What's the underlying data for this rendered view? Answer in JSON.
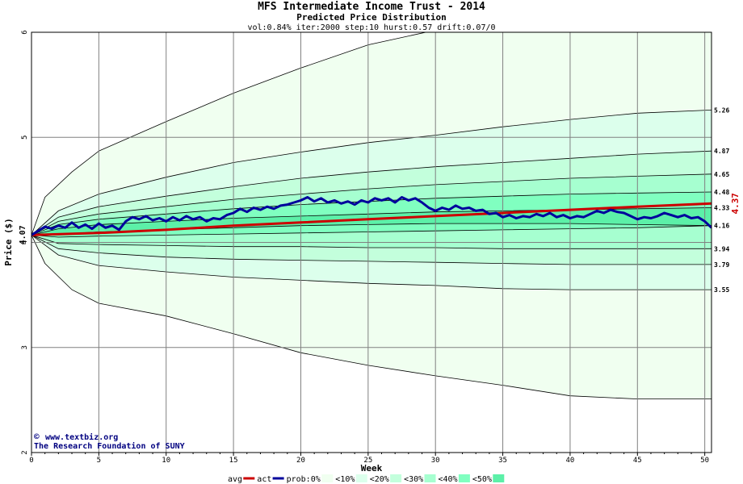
{
  "chart_data": {
    "type": "area",
    "title": "MFS Intermediate Income Trust - 2014",
    "subtitle": "Predicted Price Distribution",
    "params": "vol:0.84% iter:2000 step:10 hurst:0.57 drift:0.07/0",
    "xlabel": "Week",
    "ylabel": "Price ($)",
    "xlim": [
      0,
      50.5
    ],
    "ylim": [
      2,
      6
    ],
    "xticks": [
      0,
      5,
      10,
      15,
      20,
      25,
      30,
      35,
      40,
      45,
      50
    ],
    "yticks": [
      2,
      3,
      4,
      5,
      6
    ],
    "start_price": 4.07,
    "start_label": "4.07",
    "end_avg_label": "4.37",
    "end_avg_value": 4.37,
    "right_labels": [
      {
        "value": 5.26,
        "label": "5.26"
      },
      {
        "value": 4.87,
        "label": "4.87"
      },
      {
        "value": 4.65,
        "label": "4.65"
      },
      {
        "value": 4.48,
        "label": "4.48"
      },
      {
        "value": 4.33,
        "label": "4.33"
      },
      {
        "value": 4.16,
        "label": "4.16"
      },
      {
        "value": 3.94,
        "label": "3.94"
      },
      {
        "value": 3.79,
        "label": "3.79"
      },
      {
        "value": 3.55,
        "label": "3.55"
      }
    ],
    "bands": [
      {
        "name": "0%",
        "color": "#f0fff0",
        "upper": [
          [
            0,
            4.07
          ],
          [
            1,
            4.43
          ],
          [
            3,
            4.67
          ],
          [
            5,
            4.87
          ],
          [
            10,
            5.15
          ],
          [
            15,
            5.42
          ],
          [
            20,
            5.66
          ],
          [
            25,
            5.88
          ],
          [
            30,
            6.02
          ],
          [
            35,
            6.15
          ],
          [
            40,
            6.28
          ],
          [
            45,
            6.4
          ],
          [
            50.5,
            6.5
          ]
        ],
        "lower": [
          [
            0,
            4.07
          ],
          [
            1,
            3.8
          ],
          [
            3,
            3.55
          ],
          [
            5,
            3.42
          ],
          [
            10,
            3.3
          ],
          [
            15,
            3.13
          ],
          [
            20,
            2.95
          ],
          [
            25,
            2.83
          ],
          [
            30,
            2.73
          ],
          [
            35,
            2.64
          ],
          [
            40,
            2.54
          ],
          [
            45,
            2.51
          ],
          [
            50.5,
            2.51
          ]
        ]
      },
      {
        "name": "10%",
        "color": "#dcffec",
        "upper": [
          [
            0,
            4.07
          ],
          [
            2,
            4.3
          ],
          [
            5,
            4.46
          ],
          [
            10,
            4.62
          ],
          [
            15,
            4.76
          ],
          [
            20,
            4.86
          ],
          [
            25,
            4.95
          ],
          [
            30,
            5.02
          ],
          [
            35,
            5.1
          ],
          [
            40,
            5.17
          ],
          [
            45,
            5.23
          ],
          [
            50.5,
            5.26
          ]
        ],
        "lower": [
          [
            0,
            4.07
          ],
          [
            2,
            3.88
          ],
          [
            5,
            3.78
          ],
          [
            10,
            3.72
          ],
          [
            15,
            3.67
          ],
          [
            20,
            3.64
          ],
          [
            25,
            3.61
          ],
          [
            30,
            3.59
          ],
          [
            35,
            3.56
          ],
          [
            40,
            3.55
          ],
          [
            45,
            3.55
          ],
          [
            50.5,
            3.55
          ]
        ]
      },
      {
        "name": "20%",
        "color": "#c3ffdc",
        "upper": [
          [
            0,
            4.07
          ],
          [
            2,
            4.24
          ],
          [
            5,
            4.34
          ],
          [
            10,
            4.44
          ],
          [
            15,
            4.53
          ],
          [
            20,
            4.61
          ],
          [
            25,
            4.67
          ],
          [
            30,
            4.72
          ],
          [
            35,
            4.76
          ],
          [
            40,
            4.8
          ],
          [
            45,
            4.84
          ],
          [
            50.5,
            4.87
          ]
        ],
        "lower": [
          [
            0,
            4.07
          ],
          [
            2,
            3.94
          ],
          [
            5,
            3.9
          ],
          [
            10,
            3.86
          ],
          [
            15,
            3.84
          ],
          [
            20,
            3.83
          ],
          [
            25,
            3.82
          ],
          [
            30,
            3.81
          ],
          [
            35,
            3.8
          ],
          [
            40,
            3.79
          ],
          [
            45,
            3.79
          ],
          [
            50.5,
            3.79
          ]
        ]
      },
      {
        "name": "30%",
        "color": "#a6ffd0",
        "upper": [
          [
            0,
            4.07
          ],
          [
            2,
            4.2
          ],
          [
            5,
            4.27
          ],
          [
            10,
            4.34
          ],
          [
            15,
            4.41
          ],
          [
            20,
            4.46
          ],
          [
            25,
            4.51
          ],
          [
            30,
            4.55
          ],
          [
            35,
            4.58
          ],
          [
            40,
            4.61
          ],
          [
            45,
            4.63
          ],
          [
            50.5,
            4.65
          ]
        ],
        "lower": [
          [
            0,
            4.07
          ],
          [
            2,
            3.99
          ],
          [
            5,
            3.98
          ],
          [
            10,
            3.97
          ],
          [
            15,
            3.96
          ],
          [
            20,
            3.96
          ],
          [
            25,
            3.95
          ],
          [
            30,
            3.95
          ],
          [
            35,
            3.94
          ],
          [
            40,
            3.94
          ],
          [
            45,
            3.94
          ],
          [
            50.5,
            3.94
          ]
        ]
      },
      {
        "name": "40%",
        "color": "#80ffc0",
        "upper": [
          [
            0,
            4.07
          ],
          [
            2,
            4.17
          ],
          [
            5,
            4.22
          ],
          [
            10,
            4.27
          ],
          [
            15,
            4.32
          ],
          [
            20,
            4.36
          ],
          [
            25,
            4.39
          ],
          [
            30,
            4.42
          ],
          [
            35,
            4.44
          ],
          [
            40,
            4.46
          ],
          [
            45,
            4.47
          ],
          [
            50.5,
            4.48
          ]
        ],
        "lower": [
          [
            0,
            4.07
          ],
          [
            2,
            4.05
          ],
          [
            5,
            4.06
          ],
          [
            10,
            4.07
          ],
          [
            15,
            4.08
          ],
          [
            20,
            4.09
          ],
          [
            25,
            4.1
          ],
          [
            30,
            4.11
          ],
          [
            35,
            4.12
          ],
          [
            40,
            4.13
          ],
          [
            45,
            4.14
          ],
          [
            50.5,
            4.16
          ]
        ]
      },
      {
        "name": "50%",
        "color": "#5cf0a8",
        "upper": [
          [
            0,
            4.07
          ],
          [
            2,
            4.13
          ],
          [
            5,
            4.17
          ],
          [
            10,
            4.2
          ],
          [
            15,
            4.23
          ],
          [
            20,
            4.25
          ],
          [
            25,
            4.27
          ],
          [
            30,
            4.29
          ],
          [
            35,
            4.3
          ],
          [
            40,
            4.31
          ],
          [
            45,
            4.32
          ],
          [
            50.5,
            4.33
          ]
        ],
        "lower": [
          [
            0,
            4.07
          ],
          [
            2,
            4.08
          ],
          [
            5,
            4.1
          ],
          [
            10,
            4.12
          ],
          [
            15,
            4.14
          ],
          [
            20,
            4.16
          ],
          [
            25,
            4.17
          ],
          [
            30,
            4.18
          ],
          [
            35,
            4.18
          ],
          [
            40,
            4.18
          ],
          [
            45,
            4.17
          ],
          [
            50.5,
            4.16
          ]
        ]
      }
    ],
    "series": [
      {
        "name": "avg",
        "color": "#cc0000",
        "points": [
          [
            0,
            4.07
          ],
          [
            5,
            4.09
          ],
          [
            10,
            4.12
          ],
          [
            15,
            4.16
          ],
          [
            20,
            4.19
          ],
          [
            25,
            4.22
          ],
          [
            30,
            4.25
          ],
          [
            35,
            4.28
          ],
          [
            40,
            4.31
          ],
          [
            45,
            4.34
          ],
          [
            50.5,
            4.37
          ]
        ]
      },
      {
        "name": "act",
        "color": "#00009c",
        "points": [
          [
            0,
            4.07
          ],
          [
            0.5,
            4.11
          ],
          [
            1,
            4.15
          ],
          [
            1.5,
            4.13
          ],
          [
            2,
            4.16
          ],
          [
            2.5,
            4.14
          ],
          [
            3,
            4.19
          ],
          [
            3.5,
            4.14
          ],
          [
            4,
            4.17
          ],
          [
            4.5,
            4.13
          ],
          [
            5,
            4.18
          ],
          [
            5.5,
            4.14
          ],
          [
            6,
            4.16
          ],
          [
            6.5,
            4.12
          ],
          [
            7,
            4.2
          ],
          [
            7.5,
            4.24
          ],
          [
            8,
            4.22
          ],
          [
            8.5,
            4.25
          ],
          [
            9,
            4.21
          ],
          [
            9.5,
            4.23
          ],
          [
            10,
            4.2
          ],
          [
            10.5,
            4.24
          ],
          [
            11,
            4.21
          ],
          [
            11.5,
            4.25
          ],
          [
            12,
            4.22
          ],
          [
            12.5,
            4.24
          ],
          [
            13,
            4.2
          ],
          [
            13.5,
            4.23
          ],
          [
            14,
            4.22
          ],
          [
            14.5,
            4.26
          ],
          [
            15,
            4.28
          ],
          [
            15.5,
            4.32
          ],
          [
            16,
            4.29
          ],
          [
            16.5,
            4.33
          ],
          [
            17,
            4.31
          ],
          [
            17.5,
            4.34
          ],
          [
            18,
            4.32
          ],
          [
            18.5,
            4.35
          ],
          [
            19,
            4.36
          ],
          [
            19.5,
            4.38
          ],
          [
            20,
            4.4
          ],
          [
            20.5,
            4.43
          ],
          [
            21,
            4.39
          ],
          [
            21.5,
            4.42
          ],
          [
            22,
            4.38
          ],
          [
            22.5,
            4.4
          ],
          [
            23,
            4.37
          ],
          [
            23.5,
            4.39
          ],
          [
            24,
            4.36
          ],
          [
            24.5,
            4.4
          ],
          [
            25,
            4.38
          ],
          [
            25.5,
            4.42
          ],
          [
            26,
            4.4
          ],
          [
            26.5,
            4.42
          ],
          [
            27,
            4.38
          ],
          [
            27.5,
            4.43
          ],
          [
            28,
            4.4
          ],
          [
            28.5,
            4.42
          ],
          [
            29,
            4.38
          ],
          [
            29.5,
            4.33
          ],
          [
            30,
            4.3
          ],
          [
            30.5,
            4.33
          ],
          [
            31,
            4.31
          ],
          [
            31.5,
            4.35
          ],
          [
            32,
            4.32
          ],
          [
            32.5,
            4.33
          ],
          [
            33,
            4.3
          ],
          [
            33.5,
            4.31
          ],
          [
            34,
            4.27
          ],
          [
            34.5,
            4.28
          ],
          [
            35,
            4.24
          ],
          [
            35.5,
            4.26
          ],
          [
            36,
            4.23
          ],
          [
            36.5,
            4.25
          ],
          [
            37,
            4.24
          ],
          [
            37.5,
            4.27
          ],
          [
            38,
            4.25
          ],
          [
            38.5,
            4.28
          ],
          [
            39,
            4.24
          ],
          [
            39.5,
            4.26
          ],
          [
            40,
            4.23
          ],
          [
            40.5,
            4.25
          ],
          [
            41,
            4.24
          ],
          [
            41.5,
            4.27
          ],
          [
            42,
            4.3
          ],
          [
            42.5,
            4.28
          ],
          [
            43,
            4.31
          ],
          [
            43.5,
            4.29
          ],
          [
            44,
            4.28
          ],
          [
            44.5,
            4.25
          ],
          [
            45,
            4.22
          ],
          [
            45.5,
            4.24
          ],
          [
            46,
            4.23
          ],
          [
            46.5,
            4.25
          ],
          [
            47,
            4.28
          ],
          [
            47.5,
            4.26
          ],
          [
            48,
            4.24
          ],
          [
            48.5,
            4.26
          ],
          [
            49,
            4.23
          ],
          [
            49.5,
            4.24
          ],
          [
            50,
            4.2
          ],
          [
            50.5,
            4.14
          ]
        ]
      }
    ],
    "legend": {
      "placement": "bottom",
      "items": [
        {
          "label": "avg",
          "type": "line",
          "color": "#cc0000"
        },
        {
          "label": "act",
          "type": "line",
          "color": "#00009c"
        },
        {
          "label": "prob:0%",
          "type": "swatch",
          "color": "#f0fff0"
        },
        {
          "label": "<10%",
          "type": "swatch",
          "color": "#dcffec"
        },
        {
          "label": "<20%",
          "type": "swatch",
          "color": "#c3ffdc"
        },
        {
          "label": "<30%",
          "type": "swatch",
          "color": "#a6ffd0"
        },
        {
          "label": "<40%",
          "type": "swatch",
          "color": "#80ffc0"
        },
        {
          "label": "<50%",
          "type": "swatch",
          "color": "#5cf0a8"
        }
      ]
    },
    "watermark": {
      "line1": "www.textbiz.org",
      "line2": "The Research Foundation of SUNY",
      "symbol": "©"
    },
    "grid": true
  }
}
